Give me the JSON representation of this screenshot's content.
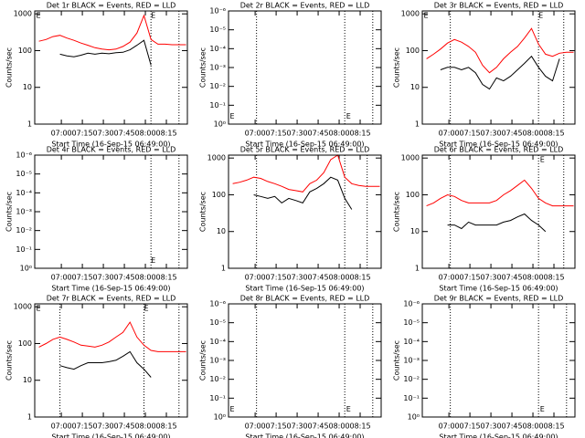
{
  "chart_data": [
    {
      "type": "line",
      "title": "Det 1r BLACK = Events, RED = LLD",
      "xlabel": "Start Time (16-Sep-15 06:49:00)",
      "ylabel": "Counts/sec",
      "log": true,
      "x": [
        -5,
        0,
        5,
        10,
        15,
        20,
        25,
        30,
        35,
        40,
        45,
        50,
        55,
        60,
        65,
        70,
        75,
        80,
        85,
        90,
        95,
        100
      ],
      "xlim": [
        -8,
        101
      ],
      "xticks": [
        {
          "value": 11,
          "label": "07:00"
        },
        {
          "value": 26,
          "label": "07:15"
        },
        {
          "value": 41,
          "label": "07:30"
        },
        {
          "value": 56,
          "label": "07:45"
        },
        {
          "value": 71,
          "label": "08:00"
        },
        {
          "value": 86,
          "label": "08:15"
        }
      ],
      "ylim": [
        1,
        1200
      ],
      "yticks": [
        1,
        10,
        100,
        1000
      ],
      "series": [
        {
          "color": "#ff0000",
          "values": [
            180,
            200,
            240,
            260,
            220,
            190,
            160,
            140,
            120,
            110,
            105,
            110,
            130,
            170,
            300,
            900,
            200,
            150,
            150,
            145,
            145,
            145
          ]
        },
        {
          "color": "#000000",
          "values": [
            null,
            null,
            null,
            80,
            72,
            68,
            75,
            85,
            80,
            85,
            82,
            88,
            90,
            105,
            140,
            190,
            40,
            null,
            null,
            null,
            null,
            null
          ]
        }
      ],
      "vlines": [
        75,
        95
      ],
      "annotations": [
        {
          "text": "E",
          "x": -7,
          "y": 900
        },
        {
          "text": "E",
          "x": 75,
          "y": 900
        }
      ]
    },
    {
      "type": "line",
      "title": "Det 2r BLACK = Events, RED = LLD",
      "xlabel": "Start Time (16-Sep-15 06:49:00)",
      "ylabel": "Counts/sec",
      "log": false,
      "xlim": [
        -8,
        101
      ],
      "xticks": [
        {
          "value": 11,
          "label": "07:00"
        },
        {
          "value": 26,
          "label": "07:15"
        },
        {
          "value": 41,
          "label": "07:30"
        },
        {
          "value": 56,
          "label": "07:45"
        },
        {
          "value": 71,
          "label": "08:00"
        },
        {
          "value": 86,
          "label": "08:15"
        }
      ],
      "ylim": [
        0,
        6
      ],
      "yticks": [
        {
          "value": 0,
          "label": "10⁰"
        },
        {
          "value": 1,
          "label": "10⁻¹"
        },
        {
          "value": 2,
          "label": "10⁻²"
        },
        {
          "value": 3,
          "label": "10⁻³"
        },
        {
          "value": 4,
          "label": "10⁻⁴"
        },
        {
          "value": 5,
          "label": "10⁻⁵"
        },
        {
          "value": 6,
          "label": "10⁻⁶"
        }
      ],
      "series": [],
      "vlines": [
        12,
        75,
        95
      ],
      "annotations": [
        {
          "text": "E",
          "x": -7,
          "y": 0.4
        },
        {
          "text": "E",
          "x": 76,
          "y": 0.4
        }
      ]
    },
    {
      "type": "line",
      "title": "Det 3r BLACK = Events, RED = LLD",
      "xlabel": "Start Time (16-Sep-15 06:49:00)",
      "ylabel": "Counts/sec",
      "log": true,
      "x": [
        -5,
        0,
        5,
        10,
        15,
        20,
        25,
        30,
        35,
        40,
        45,
        50,
        55,
        60,
        65,
        70,
        75,
        80,
        85,
        90,
        95,
        100
      ],
      "xlim": [
        -8,
        101
      ],
      "xticks": [
        {
          "value": 11,
          "label": "07:00"
        },
        {
          "value": 26,
          "label": "07:15"
        },
        {
          "value": 41,
          "label": "07:30"
        },
        {
          "value": 56,
          "label": "07:45"
        },
        {
          "value": 71,
          "label": "08:00"
        },
        {
          "value": 86,
          "label": "08:15"
        }
      ],
      "ylim": [
        1,
        1200
      ],
      "yticks": [
        1,
        10,
        100,
        1000
      ],
      "series": [
        {
          "color": "#ff0000",
          "values": [
            60,
            80,
            110,
            160,
            200,
            170,
            130,
            90,
            40,
            25,
            35,
            60,
            90,
            130,
            220,
            400,
            150,
            80,
            70,
            85,
            90,
            90
          ]
        },
        {
          "color": "#000000",
          "values": [
            null,
            null,
            30,
            35,
            35,
            30,
            35,
            25,
            12,
            9,
            18,
            15,
            20,
            30,
            45,
            70,
            35,
            20,
            15,
            60,
            null,
            null
          ]
        }
      ],
      "vlines": [
        12,
        75,
        93
      ],
      "annotations": [
        {
          "text": "E",
          "x": -7,
          "y": 900
        },
        {
          "text": "E",
          "x": 75,
          "y": 900
        }
      ]
    },
    {
      "type": "line",
      "title": "Det 4r BLACK = Events, RED = LLD",
      "xlabel": "Start Time (16-Sep-15 06:49:00)",
      "ylabel": "Counts/sec",
      "log": false,
      "xlim": [
        -8,
        101
      ],
      "xticks": [
        {
          "value": 11,
          "label": "07:00"
        },
        {
          "value": 26,
          "label": "07:15"
        },
        {
          "value": 41,
          "label": "07:30"
        },
        {
          "value": 56,
          "label": "07:45"
        },
        {
          "value": 71,
          "label": "08:00"
        },
        {
          "value": 86,
          "label": "08:15"
        }
      ],
      "ylim": [
        0,
        6
      ],
      "yticks": [
        {
          "value": 0,
          "label": "10⁰"
        },
        {
          "value": 1,
          "label": "10⁻¹"
        },
        {
          "value": 2,
          "label": "10⁻²"
        },
        {
          "value": 3,
          "label": "10⁻³"
        },
        {
          "value": 4,
          "label": "10⁻⁴"
        },
        {
          "value": 5,
          "label": "10⁻⁵"
        },
        {
          "value": 6,
          "label": "10⁻⁶"
        }
      ],
      "series": [],
      "vlines": [
        75,
        95
      ],
      "annotations": [
        {
          "text": "E",
          "x": 75,
          "y": 0.4
        }
      ]
    },
    {
      "type": "line",
      "title": "Det 5r BLACK = Events, RED = LLD",
      "xlabel": "Start Time (16-Sep-15 06:49:00)",
      "ylabel": "Counts/sec",
      "log": true,
      "x": [
        -5,
        0,
        5,
        10,
        15,
        20,
        25,
        30,
        35,
        40,
        45,
        50,
        55,
        60,
        65,
        70,
        75,
        80,
        85,
        90,
        95,
        100
      ],
      "xlim": [
        -8,
        101
      ],
      "xticks": [
        {
          "value": 11,
          "label": "07:00"
        },
        {
          "value": 26,
          "label": "07:15"
        },
        {
          "value": 41,
          "label": "07:30"
        },
        {
          "value": 56,
          "label": "07:45"
        },
        {
          "value": 71,
          "label": "08:00"
        },
        {
          "value": 86,
          "label": "08:15"
        }
      ],
      "ylim": [
        1,
        1200
      ],
      "yticks": [
        1,
        10,
        100,
        1000
      ],
      "series": [
        {
          "color": "#ff0000",
          "values": [
            200,
            220,
            250,
            300,
            280,
            230,
            200,
            170,
            140,
            130,
            120,
            200,
            250,
            400,
            900,
            1200,
            300,
            200,
            180,
            170,
            170,
            170
          ]
        },
        {
          "color": "#000000",
          "values": [
            null,
            null,
            null,
            100,
            90,
            80,
            90,
            60,
            80,
            70,
            60,
            120,
            150,
            200,
            300,
            250,
            80,
            40,
            null,
            null,
            null,
            null
          ]
        }
      ],
      "vlines": [
        12,
        75,
        91
      ],
      "annotations": []
    },
    {
      "type": "line",
      "title": "Det 6r BLACK = Events, RED = LLD",
      "xlabel": "Start Time (16-Sep-15 06:49:00)",
      "ylabel": "Counts/sec",
      "log": true,
      "x": [
        -5,
        0,
        5,
        10,
        15,
        20,
        25,
        30,
        35,
        40,
        45,
        50,
        55,
        60,
        65,
        70,
        75,
        80,
        85,
        90,
        95,
        100
      ],
      "xlim": [
        -8,
        101
      ],
      "xticks": [
        {
          "value": 11,
          "label": "07:00"
        },
        {
          "value": 26,
          "label": "07:15"
        },
        {
          "value": 41,
          "label": "07:30"
        },
        {
          "value": 56,
          "label": "07:45"
        },
        {
          "value": 71,
          "label": "08:00"
        },
        {
          "value": 86,
          "label": "08:15"
        }
      ],
      "ylim": [
        1,
        1200
      ],
      "yticks": [
        1,
        10,
        100,
        1000
      ],
      "series": [
        {
          "color": "#ff0000",
          "values": [
            50,
            60,
            80,
            100,
            90,
            70,
            60,
            60,
            60,
            60,
            70,
            100,
            130,
            180,
            250,
            150,
            80,
            60,
            50,
            50,
            50,
            50
          ]
        },
        {
          "color": "#000000",
          "values": [
            null,
            null,
            null,
            15,
            15,
            12,
            18,
            15,
            15,
            15,
            15,
            18,
            20,
            25,
            30,
            20,
            15,
            10,
            null,
            null,
            null,
            null
          ]
        }
      ],
      "vlines": [
        12,
        75,
        93
      ],
      "annotations": [
        {
          "text": "E",
          "x": 76,
          "y": 900
        }
      ]
    },
    {
      "type": "line",
      "title": "Det 7r BLACK = Events, RED = LLD",
      "xlabel": "Start Time (16-Sep-15 06:49:00)",
      "ylabel": "Counts/sec",
      "log": true,
      "x": [
        -5,
        0,
        5,
        10,
        15,
        20,
        25,
        30,
        35,
        40,
        45,
        50,
        55,
        60,
        65,
        70,
        75,
        80,
        85,
        90,
        95,
        100
      ],
      "xlim": [
        -8,
        101
      ],
      "xticks": [
        {
          "value": 11,
          "label": "07:00"
        },
        {
          "value": 26,
          "label": "07:15"
        },
        {
          "value": 41,
          "label": "07:30"
        },
        {
          "value": 56,
          "label": "07:45"
        },
        {
          "value": 71,
          "label": "08:00"
        },
        {
          "value": 86,
          "label": "08:15"
        }
      ],
      "ylim": [
        1,
        1200
      ],
      "yticks": [
        1,
        10,
        100,
        1000
      ],
      "series": [
        {
          "color": "#ff0000",
          "values": [
            80,
            100,
            130,
            150,
            130,
            110,
            90,
            85,
            80,
            90,
            110,
            150,
            200,
            380,
            150,
            90,
            65,
            60,
            60,
            60,
            60,
            60
          ]
        },
        {
          "color": "#000000",
          "values": [
            null,
            null,
            null,
            25,
            22,
            20,
            25,
            30,
            30,
            30,
            32,
            35,
            45,
            60,
            30,
            20,
            12,
            null,
            null,
            null,
            null,
            null
          ]
        }
      ],
      "vlines": [
        10,
        70,
        95
      ],
      "annotations": [
        {
          "text": "E",
          "x": -7,
          "y": 900
        },
        {
          "text": "E",
          "x": 70,
          "y": 900
        }
      ]
    },
    {
      "type": "line",
      "title": "Det 8r BLACK = Events, RED = LLD",
      "xlabel": "Start Time (16-Sep-15 06:49:00)",
      "ylabel": "Counts/sec",
      "log": false,
      "xlim": [
        -8,
        101
      ],
      "xticks": [
        {
          "value": 11,
          "label": "07:00"
        },
        {
          "value": 26,
          "label": "07:15"
        },
        {
          "value": 41,
          "label": "07:30"
        },
        {
          "value": 56,
          "label": "07:45"
        },
        {
          "value": 71,
          "label": "08:00"
        },
        {
          "value": 86,
          "label": "08:15"
        }
      ],
      "ylim": [
        0,
        6
      ],
      "yticks": [
        {
          "value": 0,
          "label": "10⁰"
        },
        {
          "value": 1,
          "label": "10⁻¹"
        },
        {
          "value": 2,
          "label": "10⁻²"
        },
        {
          "value": 3,
          "label": "10⁻³"
        },
        {
          "value": 4,
          "label": "10⁻⁴"
        },
        {
          "value": 5,
          "label": "10⁻⁵"
        },
        {
          "value": 6,
          "label": "10⁻⁶"
        }
      ],
      "series": [],
      "vlines": [
        12,
        75,
        95
      ],
      "annotations": [
        {
          "text": "E",
          "x": -7,
          "y": 0.4
        },
        {
          "text": "E",
          "x": 76,
          "y": 0.4
        }
      ]
    },
    {
      "type": "line",
      "title": "Det 9r BLACK = Events, RED = LLD",
      "xlabel": "Start Time (16-Sep-15 06:49:00)",
      "ylabel": "Counts/sec",
      "log": false,
      "xlim": [
        -8,
        101
      ],
      "xticks": [
        {
          "value": 11,
          "label": "07:00"
        },
        {
          "value": 26,
          "label": "07:15"
        },
        {
          "value": 41,
          "label": "07:30"
        },
        {
          "value": 56,
          "label": "07:45"
        },
        {
          "value": 71,
          "label": "08:00"
        },
        {
          "value": 86,
          "label": "08:15"
        }
      ],
      "ylim": [
        0,
        6
      ],
      "yticks": [
        {
          "value": 0,
          "label": "10⁰"
        },
        {
          "value": 1,
          "label": "10⁻¹"
        },
        {
          "value": 2,
          "label": "10⁻²"
        },
        {
          "value": 3,
          "label": "10⁻³"
        },
        {
          "value": 4,
          "label": "10⁻⁴"
        },
        {
          "value": 5,
          "label": "10⁻⁵"
        },
        {
          "value": 6,
          "label": "10⁻⁶"
        }
      ],
      "series": [],
      "vlines": [
        12,
        75,
        95
      ],
      "annotations": [
        {
          "text": "E",
          "x": 76,
          "y": 0.4
        }
      ]
    }
  ]
}
